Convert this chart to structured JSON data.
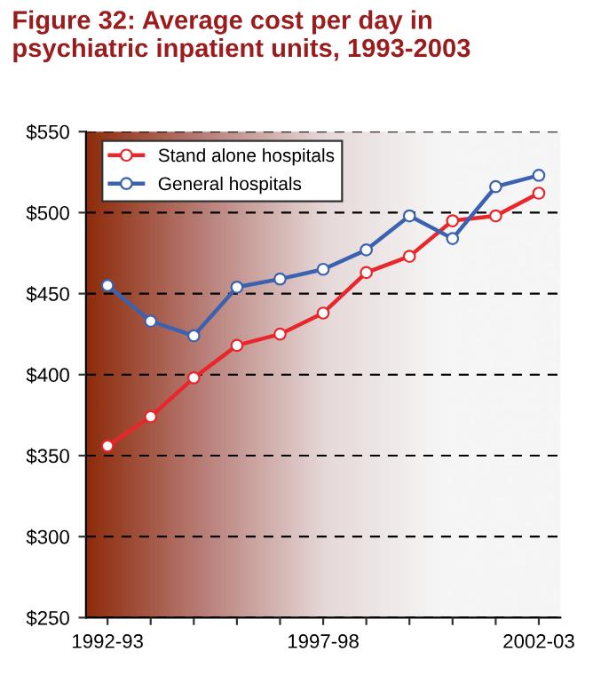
{
  "chart_data": {
    "type": "line",
    "title": "Figure 32: Average cost per day in\npsychiatric inpatient units, 1993-2003",
    "categories": [
      "1992-93",
      null,
      null,
      null,
      null,
      "1997-98",
      null,
      null,
      null,
      null,
      "2002-03"
    ],
    "series": [
      {
        "name": "Stand alone hospitals",
        "color": "#e8262b",
        "values": [
          356,
          374,
          398,
          418,
          425,
          438,
          463,
          473,
          495,
          498,
          512
        ]
      },
      {
        "name": "General hospitals",
        "color": "#3a62b0",
        "values": [
          455,
          433,
          424,
          454,
          459,
          465,
          477,
          498,
          484,
          516,
          523
        ]
      }
    ],
    "ylim": [
      250,
      550
    ],
    "yticks": [
      {
        "value": 250,
        "label": "$250"
      },
      {
        "value": 300,
        "label": "$300"
      },
      {
        "value": 350,
        "label": "$350"
      },
      {
        "value": 400,
        "label": "$400"
      },
      {
        "value": 450,
        "label": "$450"
      },
      {
        "value": 500,
        "label": "$500"
      },
      {
        "value": 550,
        "label": "$550"
      }
    ],
    "grid": "y",
    "legend": "top left",
    "marker": "circle",
    "line_style": "solid"
  }
}
